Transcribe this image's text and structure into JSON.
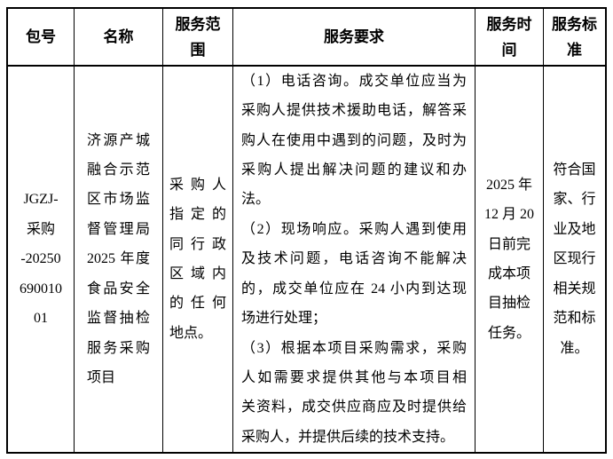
{
  "page": {
    "background_color": "#ffffff",
    "border_color": "#000000",
    "text_color": "#000000"
  },
  "table": {
    "headers": [
      "包号",
      "名称",
      "服务范围",
      "服务要求",
      "服务时间",
      "服务标准"
    ],
    "row": {
      "package_no": {
        "text": "JGZJ-采购-2025069001001",
        "lines": [
          "JGZJ-",
          "采购",
          "-20250",
          "690010",
          "01"
        ]
      },
      "name": {
        "text": "济源产城融合示范区市场监督管理局 2025 年度食品安全监督抽检服务采购项目",
        "lines": [
          "济源产城",
          "融合示范",
          "区市场监",
          "督管理局",
          "2025 年度",
          "食品安全",
          "监督抽检",
          "服务采购",
          "项目"
        ]
      },
      "service_scope": {
        "text": "采购人指定的同行政区域内的任何地点。",
        "lines": [
          "采购人",
          "指定的",
          "同行政",
          "区域内",
          "的任何",
          "地点。"
        ]
      },
      "service_requirements": {
        "paragraphs": [
          {
            "text": "（1）电话咨询。成交单位应当为采购人提供技术援助电话，解答采购人在使用中遇到的问题，及时为采购人提出解决问题的建议和办法。",
            "lines": [
              "（1）电话咨询。成交单位应当为",
              "采购人提供技术援助电话，解答采",
              "购人在使用中遇到的问题，及时为",
              "采购人提出解决问题的建议和办",
              "法。"
            ]
          },
          {
            "text": "（2）现场响应。采购人遇到使用及技术问题，电话咨询不能解决的，成交单位应在 24 小内到达现场进行处理；",
            "lines": [
              "（2）现场响应。采购人遇到使用",
              "及技术问题，电话咨询不能解决",
              "的，成交单位应在 24 小内到达现",
              "场进行处理；"
            ]
          },
          {
            "text": "（3）根据本项目采购需求，采购人如需要求提供其他与本项目相关资料，成交供应商应及时提供给采购人，并提供后续的技术支持。",
            "lines": [
              "（3）根据本项目采购需求，采购",
              "人如需要求提供其他与本项目相",
              "关资料，成交供应商应及时提供给",
              "采购人，并提供后续的技术支持。"
            ]
          }
        ]
      },
      "service_time": {
        "text": "2025 年 12 月 20 日前完成本项目抽检任务。",
        "lines": [
          "2025 年",
          "12 月 20",
          "日前完",
          "成本项",
          "目抽检",
          "任务。"
        ]
      },
      "service_standard": {
        "text": "符合国家、行业及地区现行相关规范和标准。",
        "lines": [
          "符合国",
          "家、行",
          "业及地",
          "区现行",
          "相关规",
          "范和标",
          "准。"
        ]
      }
    }
  }
}
